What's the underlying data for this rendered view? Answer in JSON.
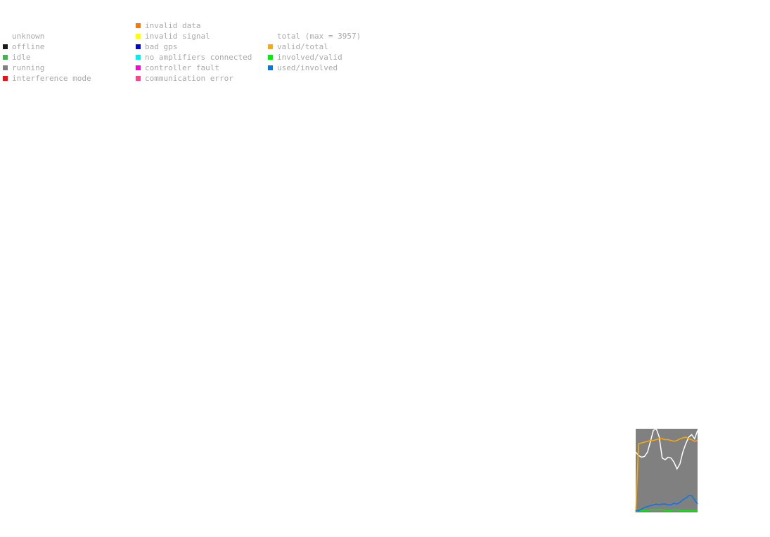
{
  "legend": {
    "columns": [
      [
        {
          "label": "unknown"
        },
        {
          "label": "offline",
          "color": "#1a1a1a"
        },
        {
          "label": "idle",
          "color": "#4caf50"
        },
        {
          "label": "running",
          "color": "#808080"
        },
        {
          "label": "interference mode",
          "color": "#ee1111"
        }
      ],
      [
        {
          "label": "invalid data",
          "color": "#ff7700"
        },
        {
          "label": "invalid signal",
          "color": "#ffff00"
        },
        {
          "label": "bad gps",
          "color": "#0000ee"
        },
        {
          "label": "no amplifiers connected",
          "color": "#00eeee"
        },
        {
          "label": "controller fault",
          "color": "#ff00dd"
        },
        {
          "label": "communication error",
          "color": "#ff4488"
        }
      ],
      [
        {
          "label": "total (max = 3957)"
        },
        {
          "label": "valid/total",
          "color": "#ffaa00"
        },
        {
          "label": "involved/valid",
          "color": "#00ee00"
        },
        {
          "label": "used/involved",
          "color": "#0077ee"
        }
      ]
    ]
  },
  "chart_data": {
    "type": "line",
    "ylim": [
      0,
      1
    ],
    "background": "#808080",
    "series": [
      {
        "color": "#ffffff",
        "values": [
          0.72,
          0.68,
          0.66,
          0.67,
          0.72,
          0.85,
          0.98,
          1.0,
          0.9,
          0.65,
          0.63,
          0.66,
          0.65,
          0.6,
          0.52,
          0.58,
          0.72,
          0.82,
          0.9,
          0.93,
          0.88,
          0.98
        ]
      },
      {
        "name": "valid/total",
        "color": "#ffaa00",
        "values": [
          0,
          0.82,
          0.83,
          0.84,
          0.85,
          0.86,
          0.86,
          0.87,
          0.88,
          0.88,
          0.87,
          0.87,
          0.86,
          0.85,
          0.86,
          0.88,
          0.89,
          0.9,
          0.88,
          0.87,
          0.85,
          0.86
        ]
      },
      {
        "name": "involved/valid",
        "color": "#00ee00",
        "values": [
          0.01,
          0.02,
          0.02,
          0.02,
          0.02,
          0.03,
          0.03,
          0.03,
          0.03,
          0.03,
          0.02,
          0.02,
          0.02,
          0.03,
          0.03,
          0.02,
          0.02,
          0.02,
          0.02,
          0.02,
          0.02,
          0.02
        ]
      },
      {
        "name": "used/involved",
        "color": "#0077ee",
        "values": [
          0.02,
          0.02,
          0.04,
          0.06,
          0.07,
          0.08,
          0.09,
          0.1,
          0.09,
          0.1,
          0.1,
          0.09,
          0.09,
          0.11,
          0.1,
          0.12,
          0.15,
          0.17,
          0.2,
          0.2,
          0.15,
          0.1
        ]
      }
    ]
  }
}
